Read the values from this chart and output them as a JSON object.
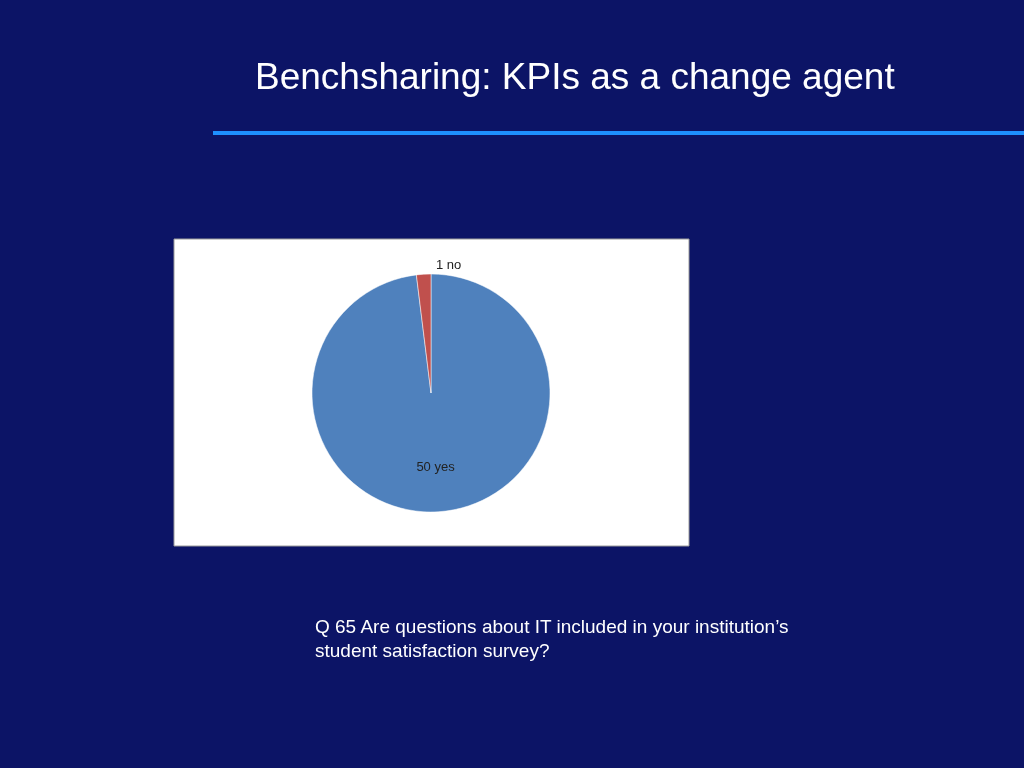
{
  "chart_data": {
    "type": "pie",
    "title": "Benchsharing: KPIs as a change agent",
    "categories": [
      "50 yes",
      "1 no"
    ],
    "values": [
      50,
      1
    ],
    "colors": [
      "#4f81bd",
      "#c0504d"
    ],
    "annotations": [
      "Q 65  Are questions about IT included in your institution’s student satisfaction survey?"
    ]
  }
}
